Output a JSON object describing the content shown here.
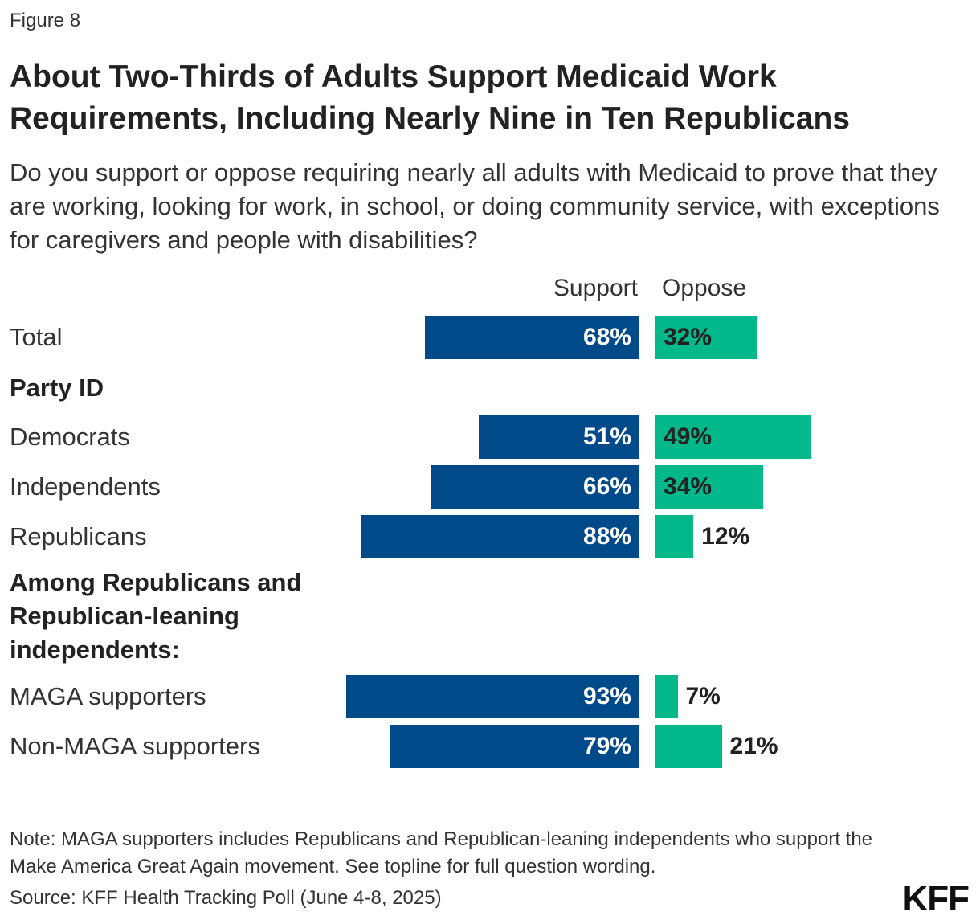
{
  "figure_label": "Figure 8",
  "title": "About Two-Thirds of Adults Support Medicaid Work Requirements, Including Nearly Nine in Ten Republicans",
  "subtitle": "Do you support or oppose requiring nearly all adults with Medicaid to prove that they are working, looking for work, in school, or doing community service, with exceptions for caregivers and people with disabilities?",
  "note": "Note: MAGA supporters includes Republicans and Republican-leaning independents who support the Make America Great Again movement. See topline for full question wording.",
  "source": "Source: KFF Health Tracking Poll (June 4-8, 2025)",
  "logo": "KFF",
  "chart_data": {
    "type": "bar",
    "orientation": "horizontal-diverging",
    "unit": "%",
    "series": [
      {
        "name": "Support",
        "color": "#004a8a"
      },
      {
        "name": "Oppose",
        "color": "#00b88a"
      }
    ],
    "rows": [
      {
        "label": "Total",
        "support": 68,
        "oppose": 32
      },
      {
        "group": "Party ID"
      },
      {
        "label": "Democrats",
        "support": 51,
        "oppose": 49
      },
      {
        "label": "Independents",
        "support": 66,
        "oppose": 34
      },
      {
        "label": "Republicans",
        "support": 88,
        "oppose": 12
      },
      {
        "group": "Among Republicans and Republican-leaning independents:"
      },
      {
        "label": "MAGA supporters",
        "support": 93,
        "oppose": 7
      },
      {
        "label": "Non-MAGA supporters",
        "support": 79,
        "oppose": 21
      }
    ]
  }
}
